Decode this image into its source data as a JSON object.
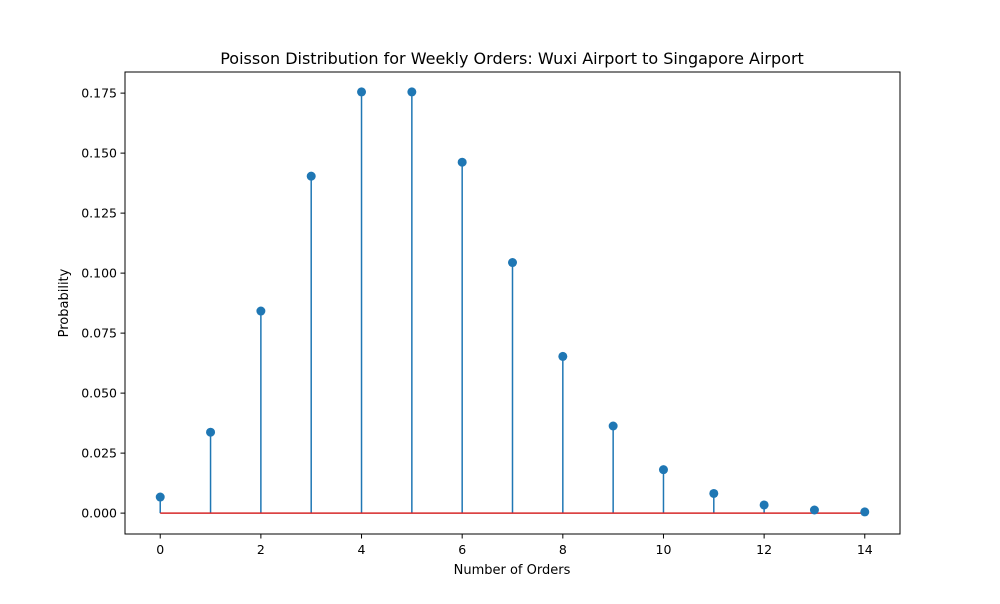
{
  "chart_data": {
    "type": "stem",
    "title": "Poisson Distribution for Weekly Orders: Wuxi Airport to Singapore Airport",
    "xlabel": "Number of Orders",
    "ylabel": "Probability",
    "xlim": [
      -0.7,
      14.7
    ],
    "ylim": [
      -0.0087,
      0.1838
    ],
    "x_ticks": [
      0,
      2,
      4,
      6,
      8,
      10,
      12,
      14
    ],
    "y_ticks": [
      0.0,
      0.025,
      0.05,
      0.075,
      0.1,
      0.125,
      0.15,
      0.175
    ],
    "y_tick_labels": [
      "0.000",
      "0.025",
      "0.050",
      "0.075",
      "0.100",
      "0.125",
      "0.150",
      "0.175"
    ],
    "x": [
      0,
      1,
      2,
      3,
      4,
      5,
      6,
      7,
      8,
      9,
      10,
      11,
      12,
      13,
      14
    ],
    "values": [
      0.0067,
      0.0337,
      0.0842,
      0.1404,
      0.1755,
      0.1755,
      0.1462,
      0.1044,
      0.0653,
      0.0363,
      0.0181,
      0.0082,
      0.0034,
      0.0013,
      0.0005
    ],
    "baseline": 0,
    "colors": {
      "stem": "#1f77b4",
      "marker": "#1f77b4",
      "baseline": "#d62728",
      "axes": "#000000"
    },
    "grid": false,
    "legend": null
  }
}
